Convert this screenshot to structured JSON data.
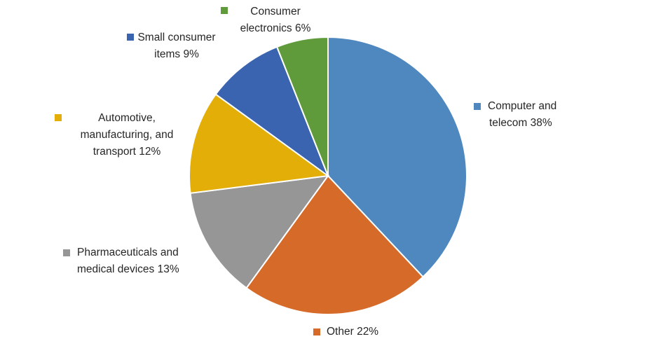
{
  "chart_data": {
    "type": "pie",
    "title": "",
    "start_angle_deg": 0,
    "direction": "clockwise",
    "slices": [
      {
        "lines": [
          "Computer  and",
          "telecom 38%"
        ],
        "value": 38,
        "color": "#4f87bf"
      },
      {
        "lines": [
          "Other 22%"
        ],
        "value": 22,
        "color": "#d56a29"
      },
      {
        "lines": [
          "Pharmaceuticals and",
          "medical devices 13%"
        ],
        "value": 13,
        "color": "#969696"
      },
      {
        "lines": [
          "Automotive,",
          "manufacturing, and",
          "transport 12%"
        ],
        "value": 12,
        "color": "#e3ae08"
      },
      {
        "lines": [
          "Small consumer",
          "items 9%"
        ],
        "value": 9,
        "color": "#3a64b0"
      },
      {
        "lines": [
          "Consumer",
          "electronics 6%"
        ],
        "value": 6,
        "color": "#5f9b3b"
      }
    ]
  }
}
